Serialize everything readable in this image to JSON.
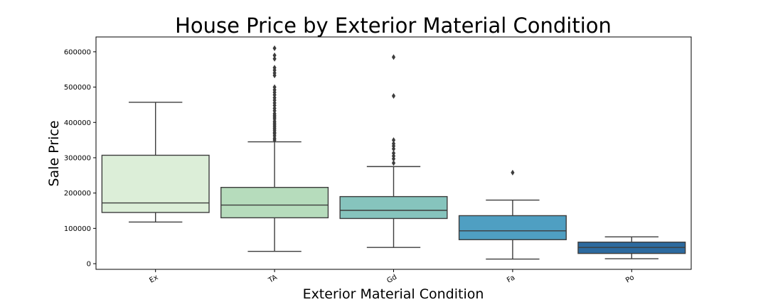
{
  "chart_data": {
    "type": "boxplot",
    "title": "House Price by Exterior Material Condition",
    "xlabel": "Exterior Material Condition",
    "ylabel": "Sale Price",
    "ylim": [
      -16000,
      642000
    ],
    "yticks": [
      0,
      100000,
      200000,
      300000,
      400000,
      500000,
      600000
    ],
    "ytick_labels": [
      "0",
      "100000",
      "200000",
      "300000",
      "400000",
      "500000",
      "600000"
    ],
    "grid": false,
    "categories": [
      "Ex",
      "TA",
      "Gd",
      "Fa",
      "Po"
    ],
    "boxes": [
      {
        "category": "Ex",
        "whisker_low": 118000,
        "q1": 145000,
        "median": 172000,
        "q3": 307000,
        "whisker_high": 457000,
        "outliers": [],
        "color": "#dceed8"
      },
      {
        "category": "TA",
        "whisker_low": 35000,
        "q1": 130000,
        "median": 166000,
        "q3": 216000,
        "whisker_high": 345000,
        "outliers": [
          350000,
          355000,
          362000,
          368000,
          372000,
          378000,
          383000,
          388000,
          393000,
          398000,
          403000,
          410000,
          415000,
          420000,
          425000,
          433000,
          440000,
          448000,
          455000,
          463000,
          470000,
          478000,
          485000,
          492000,
          500000,
          533000,
          540000,
          548000,
          555000,
          580000,
          590000,
          610000
        ],
        "color": "#b6dcbc"
      },
      {
        "category": "Gd",
        "whisker_low": 46000,
        "q1": 128000,
        "median": 151000,
        "q3": 190000,
        "whisker_high": 275000,
        "outliers": [
          285000,
          297000,
          305000,
          313000,
          325000,
          333000,
          340000,
          350000,
          475000,
          585000
        ],
        "color": "#86c4bd"
      },
      {
        "category": "Fa",
        "whisker_low": 13000,
        "q1": 68000,
        "median": 93000,
        "q3": 136000,
        "whisker_high": 180000,
        "outliers": [
          258000
        ],
        "color": "#4f9fc2"
      },
      {
        "category": "Po",
        "whisker_low": 14000,
        "q1": 29000,
        "median": 46000,
        "q3": 61000,
        "whisker_high": 76000,
        "outliers": [],
        "color": "#2c6a9f"
      }
    ]
  }
}
